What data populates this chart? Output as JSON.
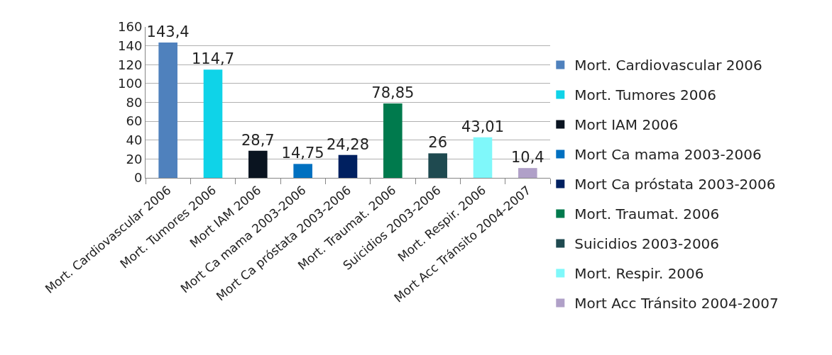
{
  "chart_data": {
    "type": "bar",
    "categories": [
      "Mort. Cardiovascular 2006",
      "Mort. Tumores 2006",
      "Mort IAM 2006",
      "Mort Ca mama 2003-2006",
      "Mort Ca próstata 2003-2006",
      "Mort. Traumat. 2006",
      "Suicidios 2003-2006",
      "Mort. Respir. 2006",
      "Mort Acc Tránsito 2004-2007"
    ],
    "series": [
      {
        "name": "Mort. Cardiovascular 2006",
        "color": "#4f81bd",
        "values": [
          143.4,
          null,
          null,
          null,
          null,
          null,
          null,
          null,
          null
        ],
        "value_labels": [
          "143,4",
          null,
          null,
          null,
          null,
          null,
          null,
          null,
          null
        ]
      },
      {
        "name": "Mort. Tumores 2006",
        "color": "#0fd3e8",
        "values": [
          null,
          114.7,
          null,
          null,
          null,
          null,
          null,
          null,
          null
        ],
        "value_labels": [
          null,
          "114,7",
          null,
          null,
          null,
          null,
          null,
          null,
          null
        ]
      },
      {
        "name": "Mort IAM 2006",
        "color": "#0a1420",
        "values": [
          null,
          null,
          28.7,
          null,
          null,
          null,
          null,
          null,
          null
        ],
        "value_labels": [
          null,
          null,
          "28,7",
          null,
          null,
          null,
          null,
          null,
          null
        ]
      },
      {
        "name": "Mort Ca mama 2003-2006",
        "color": "#0070c0",
        "values": [
          null,
          null,
          null,
          14.75,
          null,
          null,
          null,
          null,
          null
        ],
        "value_labels": [
          null,
          null,
          null,
          "14,75",
          null,
          null,
          null,
          null,
          null
        ]
      },
      {
        "name": "Mort Ca próstata 2003-2006",
        "color": "#002060",
        "values": [
          null,
          null,
          null,
          null,
          24.28,
          null,
          null,
          null,
          null
        ],
        "value_labels": [
          null,
          null,
          null,
          null,
          "24,28",
          null,
          null,
          null,
          null
        ]
      },
      {
        "name": "Mort. Traumat. 2006",
        "color": "#007a4d",
        "values": [
          null,
          null,
          null,
          null,
          null,
          78.85,
          null,
          null,
          null
        ],
        "value_labels": [
          null,
          null,
          null,
          null,
          null,
          "78,85",
          null,
          null,
          null
        ]
      },
      {
        "name": "Suicidios 2003-2006",
        "color": "#1f4a50",
        "values": [
          null,
          null,
          null,
          null,
          null,
          null,
          26,
          null,
          null
        ],
        "value_labels": [
          null,
          null,
          null,
          null,
          null,
          null,
          "26",
          null,
          null
        ]
      },
      {
        "name": "Mort. Respir. 2006",
        "color": "#7ff8fa",
        "values": [
          null,
          null,
          null,
          null,
          null,
          null,
          null,
          43.01,
          null
        ],
        "value_labels": [
          null,
          null,
          null,
          null,
          null,
          null,
          null,
          "43,01",
          null
        ]
      },
      {
        "name": "Mort Acc Tránsito 2004-2007",
        "color": "#b0a0c8",
        "values": [
          null,
          null,
          null,
          null,
          null,
          null,
          null,
          null,
          10.4
        ],
        "value_labels": [
          null,
          null,
          null,
          null,
          null,
          null,
          null,
          null,
          "10,4"
        ]
      }
    ],
    "ylim": [
      0,
      160
    ],
    "yticks": [
      0,
      20,
      40,
      60,
      80,
      100,
      120,
      140,
      160
    ],
    "grid": "y",
    "legend": "right"
  }
}
